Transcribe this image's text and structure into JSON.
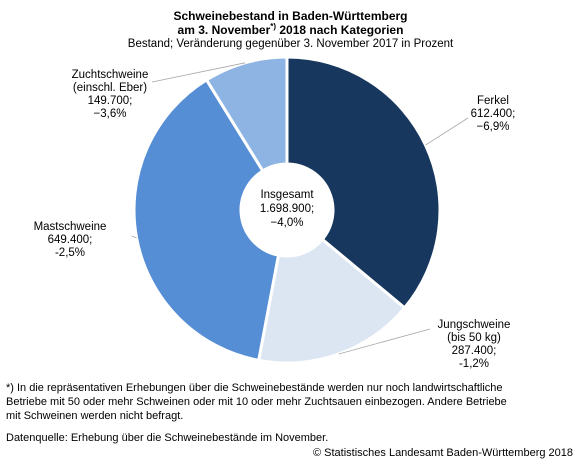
{
  "header": {
    "title_line1": "Schweinebestand in Baden-Württemberg",
    "title_line2_pre": "am 3. November",
    "title_line2_sup": "*)",
    "title_line2_post": " 2018 nach Kategorien",
    "subtitle": "Bestand; Veränderung gegenüber 3. November 2017 in Prozent"
  },
  "chart_data": {
    "type": "pie",
    "variant": "donut",
    "title": "Schweinebestand in Baden-Württemberg am 3. November*) 2018 nach Kategorien",
    "subtitle": "Bestand; Veränderung gegenüber 3. November 2017 in Prozent",
    "center": {
      "line1": "Insgesamt",
      "line2": "1.698.900;",
      "line3": "−4,0%"
    },
    "slices": [
      {
        "name": "Ferkel",
        "value": 612400,
        "lines": [
          "Ferkel",
          "612.400;",
          "−6,9%"
        ],
        "color": "#17375e"
      },
      {
        "name": "Jungschweine (bis 50 kg)",
        "value": 287400,
        "lines": [
          "Jungschweine",
          "(bis 50 kg)",
          "287.400;",
          "-1,2%"
        ],
        "color": "#dce6f2"
      },
      {
        "name": "Mastschweine",
        "value": 649400,
        "lines": [
          "Mastschweine",
          "649.400;",
          "-2,5%"
        ],
        "color": "#558ed5"
      },
      {
        "name": "Zuchtschweine (einschl. Eber)",
        "value": 149700,
        "lines": [
          "Zuchtschweine",
          "(einschl. Eber)",
          "149.700;",
          "−3,6%"
        ],
        "color": "#8eb4e3"
      }
    ]
  },
  "footer": {
    "footnote_line1": "*) In die repräsentativen Erhebungen über die Schweinebestände werden nur noch landwirtschaftliche",
    "footnote_line2": "Betriebe mit 50 oder mehr Schweinen oder mit 10 oder mehr Zuchtsauen einbezogen. Andere Betriebe",
    "footnote_line3": "mit Schweinen werden nicht befragt.",
    "source": "Datenquelle: Erhebung über die Schweinebestände im November.",
    "copyright": "© Statistisches Landesamt Baden-Württemberg 2018"
  }
}
